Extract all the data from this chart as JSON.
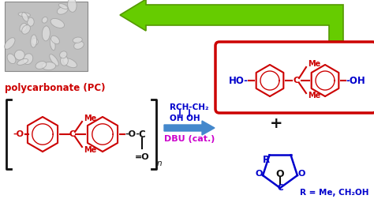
{
  "bg": "#ffffff",
  "green": "#66cc00",
  "green_dark": "#559900",
  "red": "#cc0000",
  "blue": "#0000cc",
  "magenta": "#cc00cc",
  "steel_blue": "#4488cc",
  "black": "#111111",
  "gray_photo": "#b8b8b8",
  "pc_label": "polycarbonate (PC)",
  "dbu_text": "DBU (cat.)",
  "reagent1": "RCH-CH₂",
  "reagent2": "OH OH",
  "r_eq": "R = Me, CH₂OH",
  "plus": "+"
}
